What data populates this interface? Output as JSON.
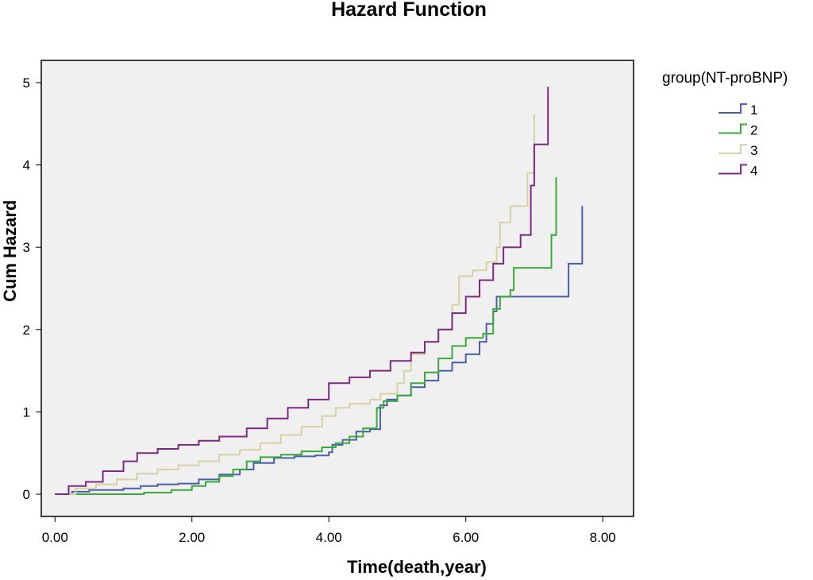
{
  "chart_data": {
    "type": "line",
    "title": "Hazard Function",
    "xlabel": "Time(death,year)",
    "ylabel": "Cum Hazard",
    "xlim": [
      -0.2,
      8.45
    ],
    "ylim": [
      -0.27,
      5.27
    ],
    "x_ticks": [
      "0.00",
      "2.00",
      "4.00",
      "6.00",
      "8.00"
    ],
    "x_tick_values": [
      0,
      2,
      4,
      6,
      8
    ],
    "y_ticks": [
      "0",
      "1",
      "2",
      "3",
      "4",
      "5"
    ],
    "y_tick_values": [
      0,
      1,
      2,
      3,
      4,
      5
    ],
    "legend_title": "group(NT-proBNP)",
    "legend_position": "right",
    "plot_background": "#f0f0f0",
    "series": [
      {
        "name": "1",
        "color": "#4a5fa8",
        "points": [
          [
            0,
            0
          ],
          [
            0.25,
            0.03
          ],
          [
            0.5,
            0.05
          ],
          [
            0.75,
            0.05
          ],
          [
            1.0,
            0.07
          ],
          [
            1.25,
            0.1
          ],
          [
            1.5,
            0.12
          ],
          [
            1.8,
            0.13
          ],
          [
            2.1,
            0.18
          ],
          [
            2.4,
            0.24
          ],
          [
            2.7,
            0.3
          ],
          [
            2.9,
            0.38
          ],
          [
            3.2,
            0.44
          ],
          [
            3.5,
            0.46
          ],
          [
            3.8,
            0.47
          ],
          [
            4.0,
            0.51
          ],
          [
            4.05,
            0.6
          ],
          [
            4.2,
            0.66
          ],
          [
            4.4,
            0.76
          ],
          [
            4.6,
            0.79
          ],
          [
            4.75,
            1.08
          ],
          [
            4.85,
            1.15
          ],
          [
            5.0,
            1.2
          ],
          [
            5.2,
            1.3
          ],
          [
            5.4,
            1.38
          ],
          [
            5.6,
            1.5
          ],
          [
            5.8,
            1.6
          ],
          [
            6.0,
            1.7
          ],
          [
            6.2,
            1.85
          ],
          [
            6.3,
            2.07
          ],
          [
            6.4,
            2.22
          ],
          [
            6.45,
            2.4
          ],
          [
            7.5,
            2.4
          ],
          [
            7.5,
            2.8
          ],
          [
            7.7,
            2.8
          ],
          [
            7.7,
            3.5
          ]
        ]
      },
      {
        "name": "2",
        "color": "#3ba83b",
        "points": [
          [
            0,
            0
          ],
          [
            0.4,
            0.0
          ],
          [
            1.1,
            0.0
          ],
          [
            1.3,
            0.02
          ],
          [
            1.7,
            0.05
          ],
          [
            2.0,
            0.1
          ],
          [
            2.2,
            0.15
          ],
          [
            2.4,
            0.22
          ],
          [
            2.6,
            0.3
          ],
          [
            2.8,
            0.4
          ],
          [
            3.0,
            0.45
          ],
          [
            3.3,
            0.48
          ],
          [
            3.6,
            0.52
          ],
          [
            3.9,
            0.57
          ],
          [
            4.1,
            0.62
          ],
          [
            4.3,
            0.7
          ],
          [
            4.5,
            0.8
          ],
          [
            4.7,
            1.05
          ],
          [
            4.8,
            1.13
          ],
          [
            5.0,
            1.2
          ],
          [
            5.2,
            1.35
          ],
          [
            5.4,
            1.48
          ],
          [
            5.6,
            1.65
          ],
          [
            5.8,
            1.8
          ],
          [
            6.0,
            1.9
          ],
          [
            6.25,
            1.95
          ],
          [
            6.4,
            2.25
          ],
          [
            6.5,
            2.4
          ],
          [
            6.65,
            2.48
          ],
          [
            6.7,
            2.75
          ],
          [
            7.25,
            2.75
          ],
          [
            7.25,
            3.15
          ],
          [
            7.3,
            3.15
          ],
          [
            7.32,
            3.85
          ]
        ]
      },
      {
        "name": "3",
        "color": "#d6d2a4",
        "points": [
          [
            0,
            0
          ],
          [
            0.3,
            0.07
          ],
          [
            0.6,
            0.12
          ],
          [
            0.9,
            0.18
          ],
          [
            1.2,
            0.25
          ],
          [
            1.5,
            0.3
          ],
          [
            1.8,
            0.35
          ],
          [
            2.1,
            0.4
          ],
          [
            2.4,
            0.48
          ],
          [
            2.7,
            0.54
          ],
          [
            3.0,
            0.62
          ],
          [
            3.3,
            0.72
          ],
          [
            3.6,
            0.82
          ],
          [
            3.9,
            0.95
          ],
          [
            4.1,
            1.05
          ],
          [
            4.3,
            1.1
          ],
          [
            4.6,
            1.15
          ],
          [
            4.75,
            1.22
          ],
          [
            5.0,
            1.35
          ],
          [
            5.1,
            1.5
          ],
          [
            5.2,
            1.7
          ],
          [
            5.4,
            1.85
          ],
          [
            5.6,
            2.0
          ],
          [
            5.8,
            2.3
          ],
          [
            5.9,
            2.65
          ],
          [
            6.1,
            2.72
          ],
          [
            6.3,
            2.82
          ],
          [
            6.45,
            3.0
          ],
          [
            6.5,
            3.3
          ],
          [
            6.65,
            3.5
          ],
          [
            6.9,
            3.9
          ],
          [
            7.0,
            3.9
          ],
          [
            7.0,
            4.62
          ]
        ]
      },
      {
        "name": "4",
        "color": "#7d2a82",
        "points": [
          [
            0,
            0
          ],
          [
            0.2,
            0.1
          ],
          [
            0.45,
            0.15
          ],
          [
            0.7,
            0.28
          ],
          [
            1.0,
            0.4
          ],
          [
            1.2,
            0.5
          ],
          [
            1.5,
            0.55
          ],
          [
            1.8,
            0.6
          ],
          [
            2.1,
            0.65
          ],
          [
            2.4,
            0.7
          ],
          [
            2.8,
            0.8
          ],
          [
            3.1,
            0.92
          ],
          [
            3.4,
            1.05
          ],
          [
            3.7,
            1.15
          ],
          [
            4.0,
            1.35
          ],
          [
            4.3,
            1.42
          ],
          [
            4.6,
            1.5
          ],
          [
            4.9,
            1.62
          ],
          [
            5.2,
            1.72
          ],
          [
            5.4,
            1.85
          ],
          [
            5.6,
            2.0
          ],
          [
            5.8,
            2.2
          ],
          [
            6.0,
            2.4
          ],
          [
            6.2,
            2.6
          ],
          [
            6.4,
            2.8
          ],
          [
            6.55,
            3.0
          ],
          [
            6.8,
            3.15
          ],
          [
            6.95,
            3.75
          ],
          [
            7.0,
            4.25
          ],
          [
            7.2,
            4.25
          ],
          [
            7.2,
            4.95
          ]
        ]
      }
    ]
  }
}
